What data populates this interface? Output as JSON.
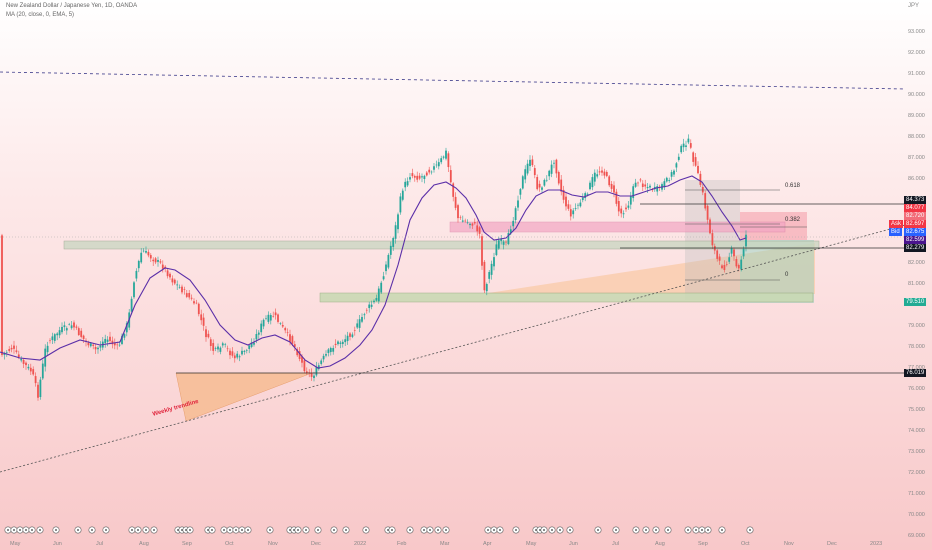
{
  "header": {
    "title": "New Zealand Dollar / Japanese Yen, 1D, OANDA",
    "indicator": "MA (20, close, 0, EMA, 5)",
    "currency": "JPY"
  },
  "annotations": {
    "trendline_label": "Weekly trendline",
    "fib_0618": "0.618",
    "fib_0382": "0.382",
    "fib_0": "0"
  },
  "price_axis": {
    "ticks": [
      "93.000",
      "92.000",
      "91.000",
      "90.000",
      "89.000",
      "88.000",
      "87.000",
      "86.000",
      "85.000",
      "84.000",
      "83.000",
      "82.000",
      "81.000",
      "80.000",
      "79.000",
      "78.000",
      "77.000",
      "76.000",
      "75.000",
      "74.000",
      "73.000",
      "72.000",
      "71.000",
      "70.000",
      "69.000"
    ],
    "tags": {
      "level_high": "84.373",
      "ask_price": "84.077",
      "level_mid": "82.720",
      "ask_label": "Ask",
      "ask_value": "82.697",
      "bid_label": "Bid",
      "bid_value": "82.675",
      "ma_value": "82.599",
      "level_82": "82.279",
      "level_low": "79.510",
      "level_76": "76.019"
    },
    "colors": {
      "dark": "#131722",
      "red": "#f23645",
      "blue": "#2962ff",
      "purple": "#4a148c",
      "green": "#22ab94"
    }
  },
  "time_axis": {
    "labels": [
      "May",
      "Jun",
      "Jul",
      "Aug",
      "Sep",
      "Oct",
      "Nov",
      "Dec",
      "2022",
      "Feb",
      "Mar",
      "Apr",
      "May",
      "Jun",
      "Jul",
      "Aug",
      "Sep",
      "Oct",
      "Nov",
      "Dec",
      "2023"
    ]
  }
}
